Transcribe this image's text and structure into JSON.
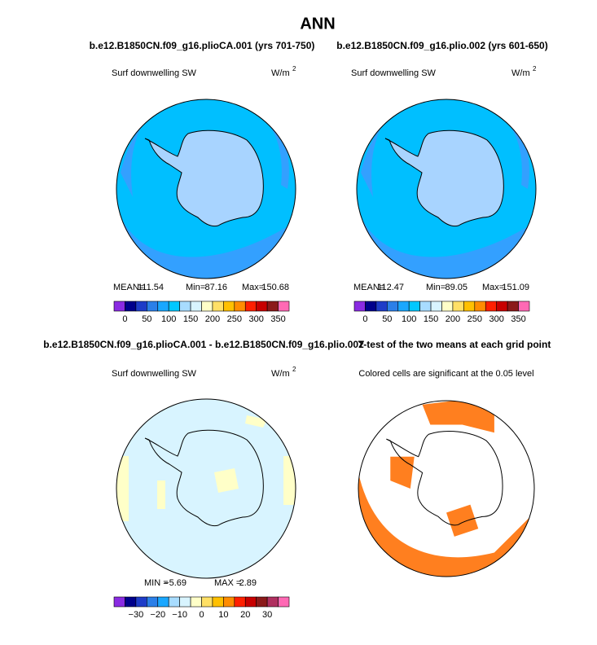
{
  "title": "ANN",
  "panels": [
    {
      "title": "b.e12.B1850CN.f09_g16.plioCA.001 (yrs 701-750)",
      "label": "Surf downwelling SW",
      "units": {
        "base": "W/m",
        "sup": "2"
      },
      "stats": [
        "MEAN=",
        "111.54",
        "Min=",
        "87.16",
        "Max=",
        "150.68"
      ],
      "colorbar": "abs"
    },
    {
      "title": "b.e12.B1850CN.f09_g16.plio.002 (yrs 601-650)",
      "label": "Surf downwelling SW",
      "units": {
        "base": "W/m",
        "sup": "2"
      },
      "stats": [
        "MEAN=",
        "112.47",
        "Min=",
        "89.05",
        "Max=",
        "151.09"
      ],
      "colorbar": "abs"
    },
    {
      "title": "b.e12.B1850CN.f09_g16.plioCA.001 - b.e12.B1850CN.f09_g16.plio.002",
      "label": "Surf downwelling SW",
      "units": {
        "base": "W/m",
        "sup": "2"
      },
      "stats": [
        "MIN =",
        "−5.69",
        "MAX =",
        "2.89"
      ],
      "colorbar": "diff"
    },
    {
      "title": "T-test of the two means at each grid point",
      "label": "Colored cells are significant at the 0.05 level"
    }
  ],
  "colorbars": {
    "abs": {
      "labels": [
        "0",
        "50",
        "100",
        "150",
        "200",
        "250",
        "300",
        "350"
      ],
      "colors": [
        "#8a2be2",
        "#00008b",
        "#1e3cc8",
        "#2b7fe8",
        "#1aa7ff",
        "#00c8ff",
        "#a8dcff",
        "#d8f4ff",
        "#ffffc8",
        "#ffe066",
        "#ffc000",
        "#ff8c00",
        "#ff2000",
        "#c80000",
        "#8b1a1a",
        "#ff69b4"
      ]
    },
    "diff": {
      "labels": [
        "−30",
        "−20",
        "−10",
        "0",
        "10",
        "20",
        "30"
      ],
      "colors": [
        "#8a2be2",
        "#00008b",
        "#1e3cc8",
        "#2b7fe8",
        "#1aa7ff",
        "#a8dcff",
        "#d8f4ff",
        "#ffffc8",
        "#ffe066",
        "#ffc000",
        "#ff8c00",
        "#ff2000",
        "#c80000",
        "#8b1a1a",
        "#b03060",
        "#ff69b4"
      ]
    }
  }
}
